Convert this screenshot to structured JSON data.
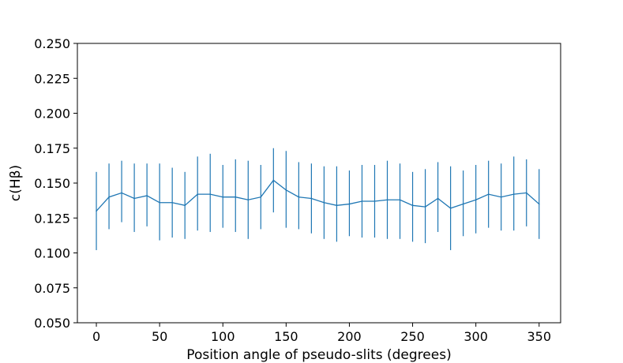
{
  "chart_data": {
    "type": "line",
    "title": "",
    "xlabel": "Position angle of pseudo-slits (degrees)",
    "ylabel": "c(Hβ)",
    "xlim": [
      -15,
      367
    ],
    "ylim": [
      0.05,
      0.25
    ],
    "xticks": [
      0,
      50,
      100,
      150,
      200,
      250,
      300,
      350
    ],
    "yticks": [
      0.05,
      0.075,
      0.1,
      0.125,
      0.15,
      0.175,
      0.2,
      0.225,
      0.25
    ],
    "xtick_labels": [
      "0",
      "50",
      "100",
      "150",
      "200",
      "250",
      "300",
      "350"
    ],
    "ytick_labels": [
      "0.050",
      "0.075",
      "0.100",
      "0.125",
      "0.150",
      "0.175",
      "0.200",
      "0.225",
      "0.250"
    ],
    "grid": false,
    "color": "#1f77b4",
    "series": [
      {
        "x": [
          0,
          10,
          20,
          30,
          40,
          50,
          60,
          70,
          80,
          90,
          100,
          110,
          120,
          130,
          140,
          150,
          160,
          170,
          180,
          190,
          200,
          210,
          220,
          230,
          240,
          250,
          260,
          270,
          280,
          290,
          300,
          310,
          320,
          330,
          340,
          350
        ],
        "y": [
          0.13,
          0.14,
          0.143,
          0.139,
          0.141,
          0.136,
          0.136,
          0.134,
          0.142,
          0.142,
          0.14,
          0.14,
          0.138,
          0.14,
          0.152,
          0.145,
          0.14,
          0.139,
          0.136,
          0.134,
          0.135,
          0.137,
          0.137,
          0.138,
          0.138,
          0.134,
          0.133,
          0.139,
          0.132,
          0.135,
          0.138,
          0.142,
          0.14,
          0.142,
          0.143,
          0.135
        ],
        "yerr_low": [
          0.102,
          0.117,
          0.122,
          0.115,
          0.119,
          0.109,
          0.111,
          0.11,
          0.116,
          0.115,
          0.118,
          0.115,
          0.11,
          0.117,
          0.129,
          0.118,
          0.117,
          0.114,
          0.11,
          0.108,
          0.112,
          0.111,
          0.111,
          0.11,
          0.11,
          0.108,
          0.107,
          0.115,
          0.102,
          0.112,
          0.114,
          0.118,
          0.116,
          0.116,
          0.119,
          0.11
        ],
        "yerr_high": [
          0.158,
          0.164,
          0.166,
          0.164,
          0.164,
          0.164,
          0.161,
          0.158,
          0.169,
          0.171,
          0.163,
          0.167,
          0.166,
          0.163,
          0.175,
          0.173,
          0.165,
          0.164,
          0.162,
          0.162,
          0.159,
          0.163,
          0.163,
          0.166,
          0.164,
          0.158,
          0.16,
          0.165,
          0.162,
          0.159,
          0.163,
          0.166,
          0.164,
          0.169,
          0.167,
          0.16
        ]
      }
    ]
  }
}
